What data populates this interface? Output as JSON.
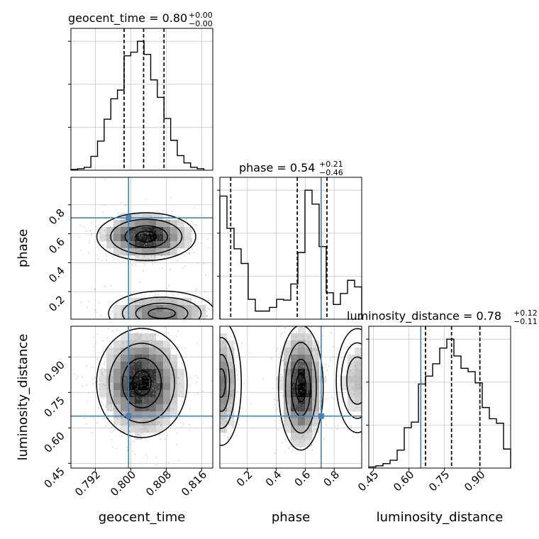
{
  "chart_data": {
    "type": "corner",
    "parameters": [
      "geocent_time",
      "phase",
      "luminosity_distance"
    ],
    "truth": {
      "geocent_time": 0.7995,
      "phase": 0.71,
      "luminosity_distance": 0.65
    },
    "colors": {
      "truth": "#4682b4",
      "hist": "#000000",
      "grid": "#c8c8c8"
    },
    "grid": true,
    "panels": {
      "hist_geocent_time": {
        "title": {
          "base": "geocent_time = 0.80",
          "sup": "+0.00",
          "sub": "−0.00"
        },
        "xlim": [
          0.7865,
          0.8185
        ],
        "bins": [
          0.7865,
          0.788,
          0.7895,
          0.791,
          0.7925,
          0.794,
          0.7955,
          0.797,
          0.7985,
          0.8,
          0.8015,
          0.803,
          0.8045,
          0.806,
          0.8075,
          0.809,
          0.8105,
          0.812,
          0.8135,
          0.815,
          0.8165
        ],
        "counts": [
          1,
          2,
          4,
          19,
          40,
          70,
          98,
          110,
          157,
          162,
          177,
          159,
          124,
          100,
          71,
          41,
          20,
          10,
          4,
          2
        ],
        "quantiles": [
          0.7985,
          0.8029,
          0.8075
        ]
      },
      "hist_phase": {
        "title": {
          "base": "phase = 0.54",
          "sup": "+0.21",
          "sub": "−0.46"
        },
        "xlim": [
          0.01,
          0.99
        ],
        "bins": [
          0.01,
          0.059,
          0.108,
          0.157,
          0.206,
          0.255,
          0.304,
          0.353,
          0.402,
          0.451,
          0.5,
          0.549,
          0.598,
          0.647,
          0.696,
          0.745,
          0.794,
          0.843,
          0.892,
          0.941,
          0.99
        ],
        "counts": [
          168,
          124,
          96,
          76,
          27,
          11,
          11,
          16,
          27,
          26,
          48,
          91,
          176,
          157,
          99,
          36,
          20,
          35,
          53,
          44
        ],
        "quantiles": [
          0.085,
          0.545,
          0.75
        ]
      },
      "hist_luminosity_distance": {
        "title": {
          "base": "luminosity_distance = 0.78",
          "sup": "+0.12",
          "sub": "−0.11"
        },
        "xlim": [
          0.43,
          1.03
        ],
        "bins": [
          0.43,
          0.46,
          0.49,
          0.52,
          0.55,
          0.58,
          0.61,
          0.64,
          0.67,
          0.7,
          0.73,
          0.76,
          0.79,
          0.82,
          0.85,
          0.88,
          0.91,
          0.94,
          0.97,
          1.0,
          1.03
        ],
        "counts": [
          1,
          2,
          4,
          7,
          16,
          36,
          41,
          75,
          82,
          93,
          107,
          115,
          100,
          89,
          86,
          76,
          54,
          44,
          40,
          17
        ],
        "quantiles": [
          0.67,
          0.78,
          0.9
        ]
      },
      "scatter_phase_vs_geocent_time": {
        "modes": [
          {
            "x": 0.8035,
            "y": 0.58,
            "sx": 0.0048,
            "sy": 0.075,
            "w": 0.65
          },
          {
            "x": 0.807,
            "y": 0.05,
            "sx": 0.0058,
            "sy": 0.07,
            "w": 0.35
          }
        ]
      },
      "scatter_distance_vs_geocent_time": {
        "modes": [
          {
            "x": 0.8025,
            "y": 0.79,
            "sx": 0.0044,
            "sy": 0.105,
            "w": 1.0
          }
        ]
      },
      "scatter_distance_vs_phase": {
        "modes": [
          {
            "x": 0.57,
            "y": 0.77,
            "sx": 0.07,
            "sy": 0.12,
            "w": 0.55
          },
          {
            "x": 0.02,
            "y": 0.79,
            "sx": 0.06,
            "sy": 0.12,
            "w": 0.3
          },
          {
            "x": 0.96,
            "y": 0.8,
            "sx": 0.07,
            "sy": 0.1,
            "w": 0.15
          }
        ]
      }
    },
    "axes": {
      "geocent_time": {
        "label": "geocent_time",
        "ticks": [
          0.792,
          0.8,
          0.808,
          0.816
        ],
        "tick_labels": [
          "0.792",
          "0.800",
          "0.808",
          "0.816"
        ]
      },
      "phase": {
        "label": "phase",
        "range": [
          0.01,
          0.99
        ],
        "ticks": [
          0.2,
          0.4,
          0.6,
          0.8
        ],
        "tick_labels": [
          "0.2",
          "0.4",
          "0.6",
          "0.8"
        ],
        "x_ticks": [
          0.2,
          0.4,
          0.6,
          0.8
        ],
        "x_tick_labels": [
          "0.2",
          "0.4",
          "0.6",
          "0.8"
        ]
      },
      "luminosity_distance": {
        "label": "luminosity_distance",
        "range": [
          0.43,
          1.03
        ],
        "ticks": [
          0.45,
          0.6,
          0.75,
          0.9
        ],
        "tick_labels": [
          "0.45",
          "0.60",
          "0.75",
          "0.90"
        ]
      }
    }
  }
}
